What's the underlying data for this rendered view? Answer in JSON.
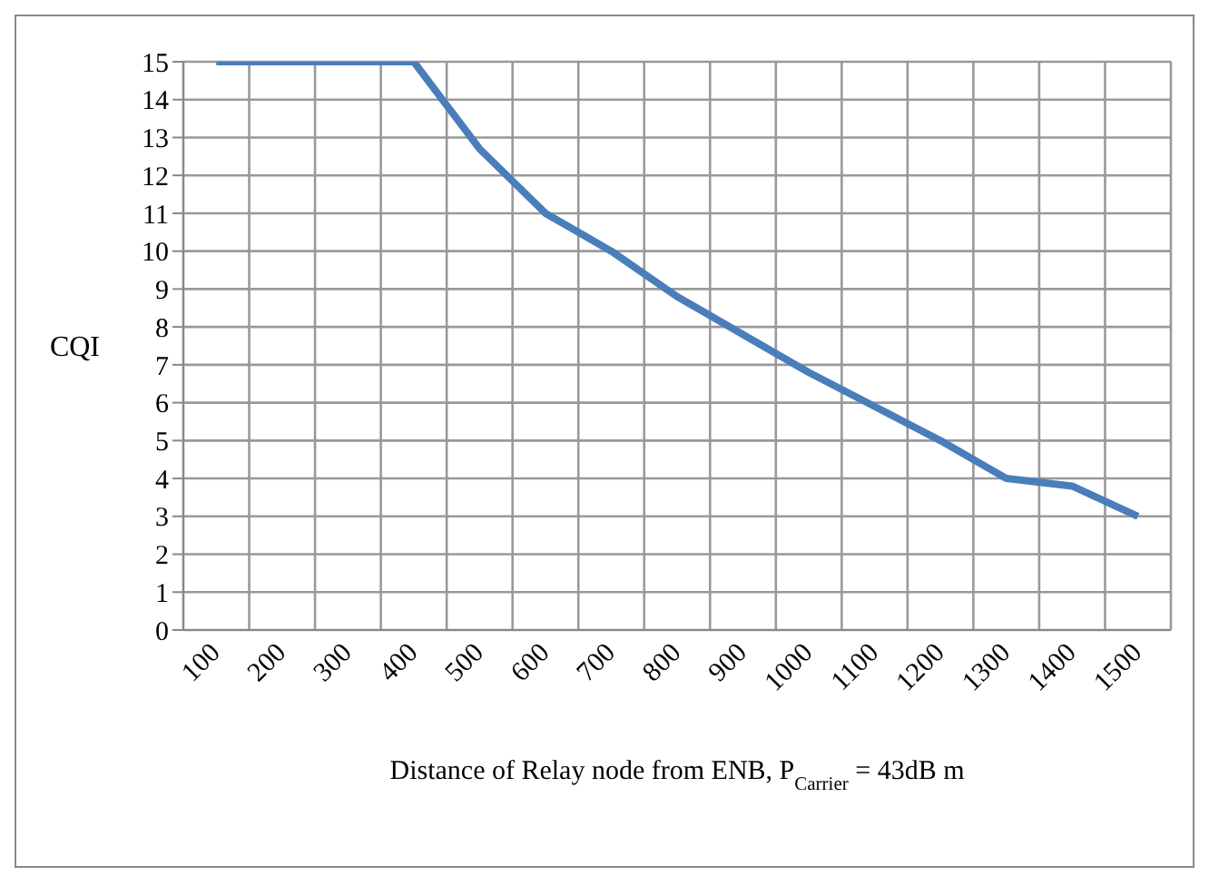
{
  "chart_data": {
    "type": "line",
    "xlabel": "Distance of Relay node from ENB, P$_{Carrier}$ = 43dB m",
    "ylabel": "CQI",
    "categories": [
      "100",
      "200",
      "300",
      "400",
      "500",
      "600",
      "700",
      "800",
      "900",
      "1000",
      "1100",
      "1200",
      "1300",
      "1400",
      "1500"
    ],
    "series": [
      {
        "color": "#4a7ebb",
        "values": [
          15,
          15,
          15,
          15,
          12.7,
          11,
          10,
          8.8,
          7.8,
          6.8,
          5.9,
          5,
          4,
          3.8,
          3
        ]
      }
    ],
    "ylim": [
      0,
      15
    ],
    "yticks": [
      0,
      1,
      2,
      3,
      4,
      5,
      6,
      7,
      8,
      9,
      10,
      11,
      12,
      13,
      14,
      15
    ],
    "grid": true,
    "legend": false,
    "marker": "none",
    "line_style": "solid"
  }
}
